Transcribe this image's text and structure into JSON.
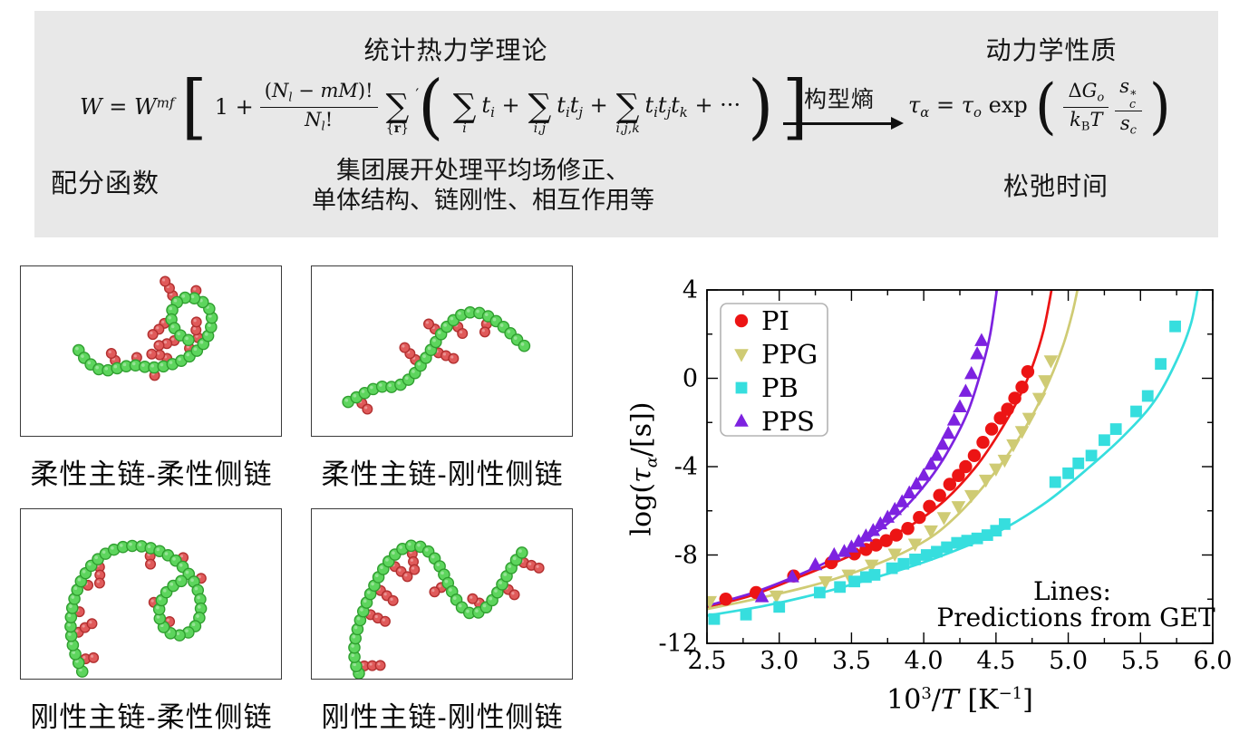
{
  "theory_panel": {
    "bg": "#e8e8e8",
    "title_left": "统计热力学理论",
    "title_right": "动力学性质",
    "partition_label": "配分函数",
    "cluster_note_line1": "集团展开处理平均场修正、",
    "cluster_note_line2": "单体结构、链刚性、相互作用等",
    "relaxation_label": "松弛时间",
    "arrow_label": "构型熵",
    "formula_w": {
      "lhs_html": "<i>W</i> = <i>W</i><sup><i>mf</i></sup>",
      "lbracket": "[",
      "one_plus": "1 +",
      "frac_num_html": "(<i>N</i><sub><i>l</i></sub> − <i>mM</i>)!",
      "frac_den_html": "<i>N</i><sub><i>l</i></sub>!",
      "sum_sym": "∑",
      "sum_prime": "′",
      "sum_prime_sub_html": "{<b>r</b>}",
      "lparen": "(",
      "terms": [
        {
          "sub_html": "<i>i</i>",
          "body_html": "<i>t</i><sub><i>i</i></sub> +"
        },
        {
          "sub_html": "<i>i</i>,<i>j</i>",
          "body_html": "<i>t</i><sub><i>i</i></sub><i>t</i><sub><i>j</i></sub> +"
        },
        {
          "sub_html": "<i>i</i>,<i>j</i>,<i>k</i>",
          "body_html": "<i>t</i><sub><i>i</i></sub><i>t</i><sub><i>j</i></sub><i>t</i><sub><i>k</i></sub> + ···"
        }
      ],
      "rparen": ")",
      "rbracket": "]"
    },
    "formula_tau": {
      "lhs_html": "<i>τ</i><sub><i>α</i></sub> = <i>τ</i><sub><i>o</i></sub> exp",
      "lparen": "(",
      "frac1_num_html": "Δ<i>G</i><sub><i>o</i></sub>",
      "frac1_den_html": "<i>k</i><sub>B</sub><i>T</i>",
      "frac2_num_html": "<i>s</i><span class='stack'><sup>∗</sup><sub><i>c</i></sub></span>",
      "frac2_den_html": "<i>s</i><sub><i>c</i></sub>",
      "rparen": ")"
    }
  },
  "bead_colors": {
    "backbone_fill": "#5dd55d",
    "backbone_stroke": "#2f9e2f",
    "side_fill": "#e05a5a",
    "side_stroke": "#b23030"
  },
  "molecule_panels": [
    {
      "label": "柔性主链-柔性侧链",
      "seed": 7,
      "side_every": 2,
      "branch_min": 1,
      "branch_max": 3,
      "straight": false,
      "backbone": [
        [
          64,
          94
        ],
        [
          74,
          108
        ],
        [
          90,
          118
        ],
        [
          108,
          114
        ],
        [
          126,
          110
        ],
        [
          144,
          114
        ],
        [
          162,
          112
        ],
        [
          180,
          106
        ],
        [
          196,
          96
        ],
        [
          208,
          82
        ],
        [
          214,
          64
        ],
        [
          212,
          47
        ],
        [
          198,
          36
        ],
        [
          181,
          34
        ],
        [
          169,
          45
        ],
        [
          167,
          62
        ],
        [
          176,
          77
        ],
        [
          190,
          84
        ]
      ]
    },
    {
      "label": "柔性主链-刚性侧链",
      "seed": 13,
      "side_every": 2,
      "branch_min": 2,
      "branch_max": 3,
      "straight": true,
      "backbone": [
        [
          40,
          152
        ],
        [
          58,
          142
        ],
        [
          76,
          134
        ],
        [
          92,
          136
        ],
        [
          108,
          128
        ],
        [
          121,
          112
        ],
        [
          132,
          95
        ],
        [
          143,
          77
        ],
        [
          156,
          61
        ],
        [
          172,
          51
        ],
        [
          190,
          52
        ],
        [
          206,
          61
        ],
        [
          220,
          73
        ],
        [
          232,
          85
        ],
        [
          245,
          95
        ]
      ]
    },
    {
      "label": "刚性主链-柔性侧链",
      "seed": 21,
      "side_every": 3,
      "branch_min": 1,
      "branch_max": 3,
      "straight": false,
      "backbone": [
        [
          68,
          182
        ],
        [
          58,
          158
        ],
        [
          54,
          130
        ],
        [
          58,
          102
        ],
        [
          68,
          76
        ],
        [
          84,
          56
        ],
        [
          104,
          44
        ],
        [
          128,
          40
        ],
        [
          152,
          45
        ],
        [
          172,
          56
        ],
        [
          188,
          72
        ],
        [
          199,
          92
        ],
        [
          202,
          113
        ],
        [
          196,
          132
        ],
        [
          180,
          143
        ],
        [
          162,
          138
        ],
        [
          153,
          120
        ],
        [
          156,
          102
        ],
        [
          166,
          88
        ],
        [
          180,
          80
        ]
      ]
    },
    {
      "label": "刚性主链-刚性侧链",
      "seed": 42,
      "side_every": 3,
      "branch_min": 2,
      "branch_max": 3,
      "straight": true,
      "backbone": [
        [
          52,
          186
        ],
        [
          46,
          166
        ],
        [
          48,
          142
        ],
        [
          56,
          116
        ],
        [
          66,
          92
        ],
        [
          78,
          68
        ],
        [
          92,
          50
        ],
        [
          108,
          40
        ],
        [
          124,
          42
        ],
        [
          137,
          54
        ],
        [
          147,
          72
        ],
        [
          156,
          92
        ],
        [
          166,
          110
        ],
        [
          179,
          119
        ],
        [
          194,
          112
        ],
        [
          206,
          96
        ],
        [
          216,
          78
        ],
        [
          225,
          62
        ],
        [
          233,
          50
        ],
        [
          242,
          42
        ]
      ]
    }
  ],
  "chart_data": {
    "type": "scatter",
    "title": "",
    "xlabel_html": "10<sup>3</sup>/<i>T</i> [K<sup>−1</sup>]",
    "ylabel_html": "log(<i>τ</i><sub><i>α</i></sub>/[s])",
    "xlim": [
      2.5,
      6.0
    ],
    "ylim": [
      -12,
      4
    ],
    "x_major_step": 0.5,
    "x_minor_step": 0.25,
    "y_major_step": 4,
    "y_minor_step": 2,
    "x_tick_labels": [
      "2.5",
      "3.0",
      "3.5",
      "4.0",
      "4.5",
      "5.0",
      "5.5",
      "6.0"
    ],
    "y_tick_labels": [
      "4",
      "0",
      "-4",
      "-8",
      "-12"
    ],
    "grid": false,
    "legend_position": "upper left",
    "annotation_line1": "Lines:",
    "annotation_line2": "Predictions from GET",
    "series": [
      {
        "name": "PI",
        "color": "#ec1414",
        "marker": "circle",
        "points": [
          [
            2.63,
            -10.0
          ],
          [
            2.84,
            -9.7
          ],
          [
            3.1,
            -8.95
          ],
          [
            3.36,
            -8.35
          ],
          [
            3.52,
            -7.95
          ],
          [
            3.6,
            -7.75
          ],
          [
            3.67,
            -7.55
          ],
          [
            3.74,
            -7.35
          ],
          [
            3.81,
            -7.1
          ],
          [
            3.89,
            -6.8
          ],
          [
            3.97,
            -6.3
          ],
          [
            4.04,
            -5.8
          ],
          [
            4.11,
            -5.3
          ],
          [
            4.18,
            -4.8
          ],
          [
            4.24,
            -4.4
          ],
          [
            4.29,
            -4.0
          ],
          [
            4.35,
            -3.5
          ],
          [
            4.41,
            -2.9
          ],
          [
            4.47,
            -2.3
          ],
          [
            4.53,
            -1.8
          ],
          [
            4.58,
            -1.4
          ],
          [
            4.63,
            -0.9
          ],
          [
            4.68,
            -0.4
          ],
          [
            4.72,
            0.3
          ]
        ],
        "line": [
          [
            2.5,
            -10.35
          ],
          [
            2.8,
            -9.85
          ],
          [
            3.1,
            -9.1
          ],
          [
            3.4,
            -8.3
          ],
          [
            3.7,
            -7.4
          ],
          [
            3.95,
            -6.5
          ],
          [
            4.15,
            -5.5
          ],
          [
            4.35,
            -4.1
          ],
          [
            4.5,
            -2.7
          ],
          [
            4.65,
            -1.0
          ],
          [
            4.75,
            0.5
          ],
          [
            4.83,
            2.2
          ],
          [
            4.89,
            4.2
          ]
        ]
      },
      {
        "name": "PPG",
        "color": "#cfcb74",
        "marker": "triangle-down",
        "points": [
          [
            2.52,
            -10.1
          ],
          [
            2.98,
            -9.85
          ],
          [
            3.32,
            -9.2
          ],
          [
            3.48,
            -8.9
          ],
          [
            3.64,
            -8.45
          ],
          [
            3.8,
            -7.95
          ],
          [
            3.94,
            -7.5
          ],
          [
            4.05,
            -6.9
          ],
          [
            4.14,
            -6.3
          ],
          [
            4.24,
            -5.8
          ],
          [
            4.33,
            -5.3
          ],
          [
            4.43,
            -4.6
          ],
          [
            4.5,
            -4.1
          ],
          [
            4.56,
            -3.7
          ],
          [
            4.62,
            -3.0
          ],
          [
            4.68,
            -2.4
          ],
          [
            4.73,
            -1.8
          ],
          [
            4.8,
            -0.9
          ],
          [
            4.84,
            -0.1
          ],
          [
            4.88,
            0.8
          ]
        ],
        "line": [
          [
            2.5,
            -10.45
          ],
          [
            2.9,
            -9.9
          ],
          [
            3.3,
            -9.25
          ],
          [
            3.7,
            -8.35
          ],
          [
            4.0,
            -7.4
          ],
          [
            4.2,
            -6.4
          ],
          [
            4.4,
            -5.0
          ],
          [
            4.6,
            -3.3
          ],
          [
            4.75,
            -1.7
          ],
          [
            4.87,
            -0.1
          ],
          [
            4.97,
            1.6
          ],
          [
            5.03,
            3.0
          ],
          [
            5.07,
            4.2
          ]
        ]
      },
      {
        "name": "PB",
        "color": "#36dede",
        "marker": "square",
        "points": [
          [
            2.55,
            -10.9
          ],
          [
            2.77,
            -10.7
          ],
          [
            3.0,
            -10.35
          ],
          [
            3.28,
            -9.7
          ],
          [
            3.42,
            -9.45
          ],
          [
            3.52,
            -9.2
          ],
          [
            3.6,
            -9.0
          ],
          [
            3.66,
            -8.9
          ],
          [
            3.78,
            -8.6
          ],
          [
            3.86,
            -8.4
          ],
          [
            3.94,
            -8.2
          ],
          [
            4.02,
            -8.0
          ],
          [
            4.09,
            -7.85
          ],
          [
            4.16,
            -7.65
          ],
          [
            4.23,
            -7.45
          ],
          [
            4.3,
            -7.35
          ],
          [
            4.37,
            -7.25
          ],
          [
            4.44,
            -7.1
          ],
          [
            4.5,
            -6.9
          ],
          [
            4.56,
            -6.6
          ],
          [
            4.91,
            -4.7
          ],
          [
            5.0,
            -4.3
          ],
          [
            5.07,
            -3.85
          ],
          [
            5.16,
            -3.5
          ],
          [
            5.25,
            -2.8
          ],
          [
            5.33,
            -2.3
          ],
          [
            5.47,
            -1.5
          ],
          [
            5.55,
            -0.8
          ],
          [
            5.64,
            0.65
          ],
          [
            5.74,
            2.35
          ]
        ],
        "line": [
          [
            2.5,
            -10.75
          ],
          [
            2.9,
            -10.3
          ],
          [
            3.3,
            -9.7
          ],
          [
            3.7,
            -8.95
          ],
          [
            4.1,
            -8.1
          ],
          [
            4.5,
            -7.0
          ],
          [
            4.85,
            -5.6
          ],
          [
            5.15,
            -4.0
          ],
          [
            5.4,
            -2.5
          ],
          [
            5.6,
            -1.0
          ],
          [
            5.75,
            0.8
          ],
          [
            5.85,
            2.5
          ],
          [
            5.9,
            4.2
          ]
        ]
      },
      {
        "name": "PPS",
        "color": "#7d22e0",
        "marker": "triangle-up",
        "points": [
          [
            2.88,
            -9.9
          ],
          [
            3.09,
            -9.0
          ],
          [
            3.25,
            -8.45
          ],
          [
            3.38,
            -8.0
          ],
          [
            3.45,
            -7.85
          ],
          [
            3.5,
            -7.65
          ],
          [
            3.55,
            -7.4
          ],
          [
            3.6,
            -7.15
          ],
          [
            3.65,
            -6.9
          ],
          [
            3.7,
            -6.6
          ],
          [
            3.75,
            -6.3
          ],
          [
            3.8,
            -5.95
          ],
          [
            3.85,
            -5.6
          ],
          [
            3.9,
            -5.2
          ],
          [
            3.95,
            -4.8
          ],
          [
            4.0,
            -4.4
          ],
          [
            4.05,
            -3.9
          ],
          [
            4.09,
            -3.5
          ],
          [
            4.13,
            -3.0
          ],
          [
            4.17,
            -2.5
          ],
          [
            4.21,
            -1.9
          ],
          [
            4.25,
            -1.3
          ],
          [
            4.29,
            -0.6
          ],
          [
            4.33,
            0.2
          ],
          [
            4.37,
            1.1
          ],
          [
            4.4,
            1.7
          ]
        ],
        "line": [
          [
            2.5,
            -10.3
          ],
          [
            2.8,
            -9.75
          ],
          [
            3.1,
            -9.0
          ],
          [
            3.35,
            -8.25
          ],
          [
            3.6,
            -7.3
          ],
          [
            3.8,
            -6.3
          ],
          [
            4.0,
            -4.9
          ],
          [
            4.15,
            -3.5
          ],
          [
            4.3,
            -1.6
          ],
          [
            4.4,
            0.4
          ],
          [
            4.46,
            2.0
          ],
          [
            4.51,
            4.2
          ]
        ]
      }
    ]
  }
}
